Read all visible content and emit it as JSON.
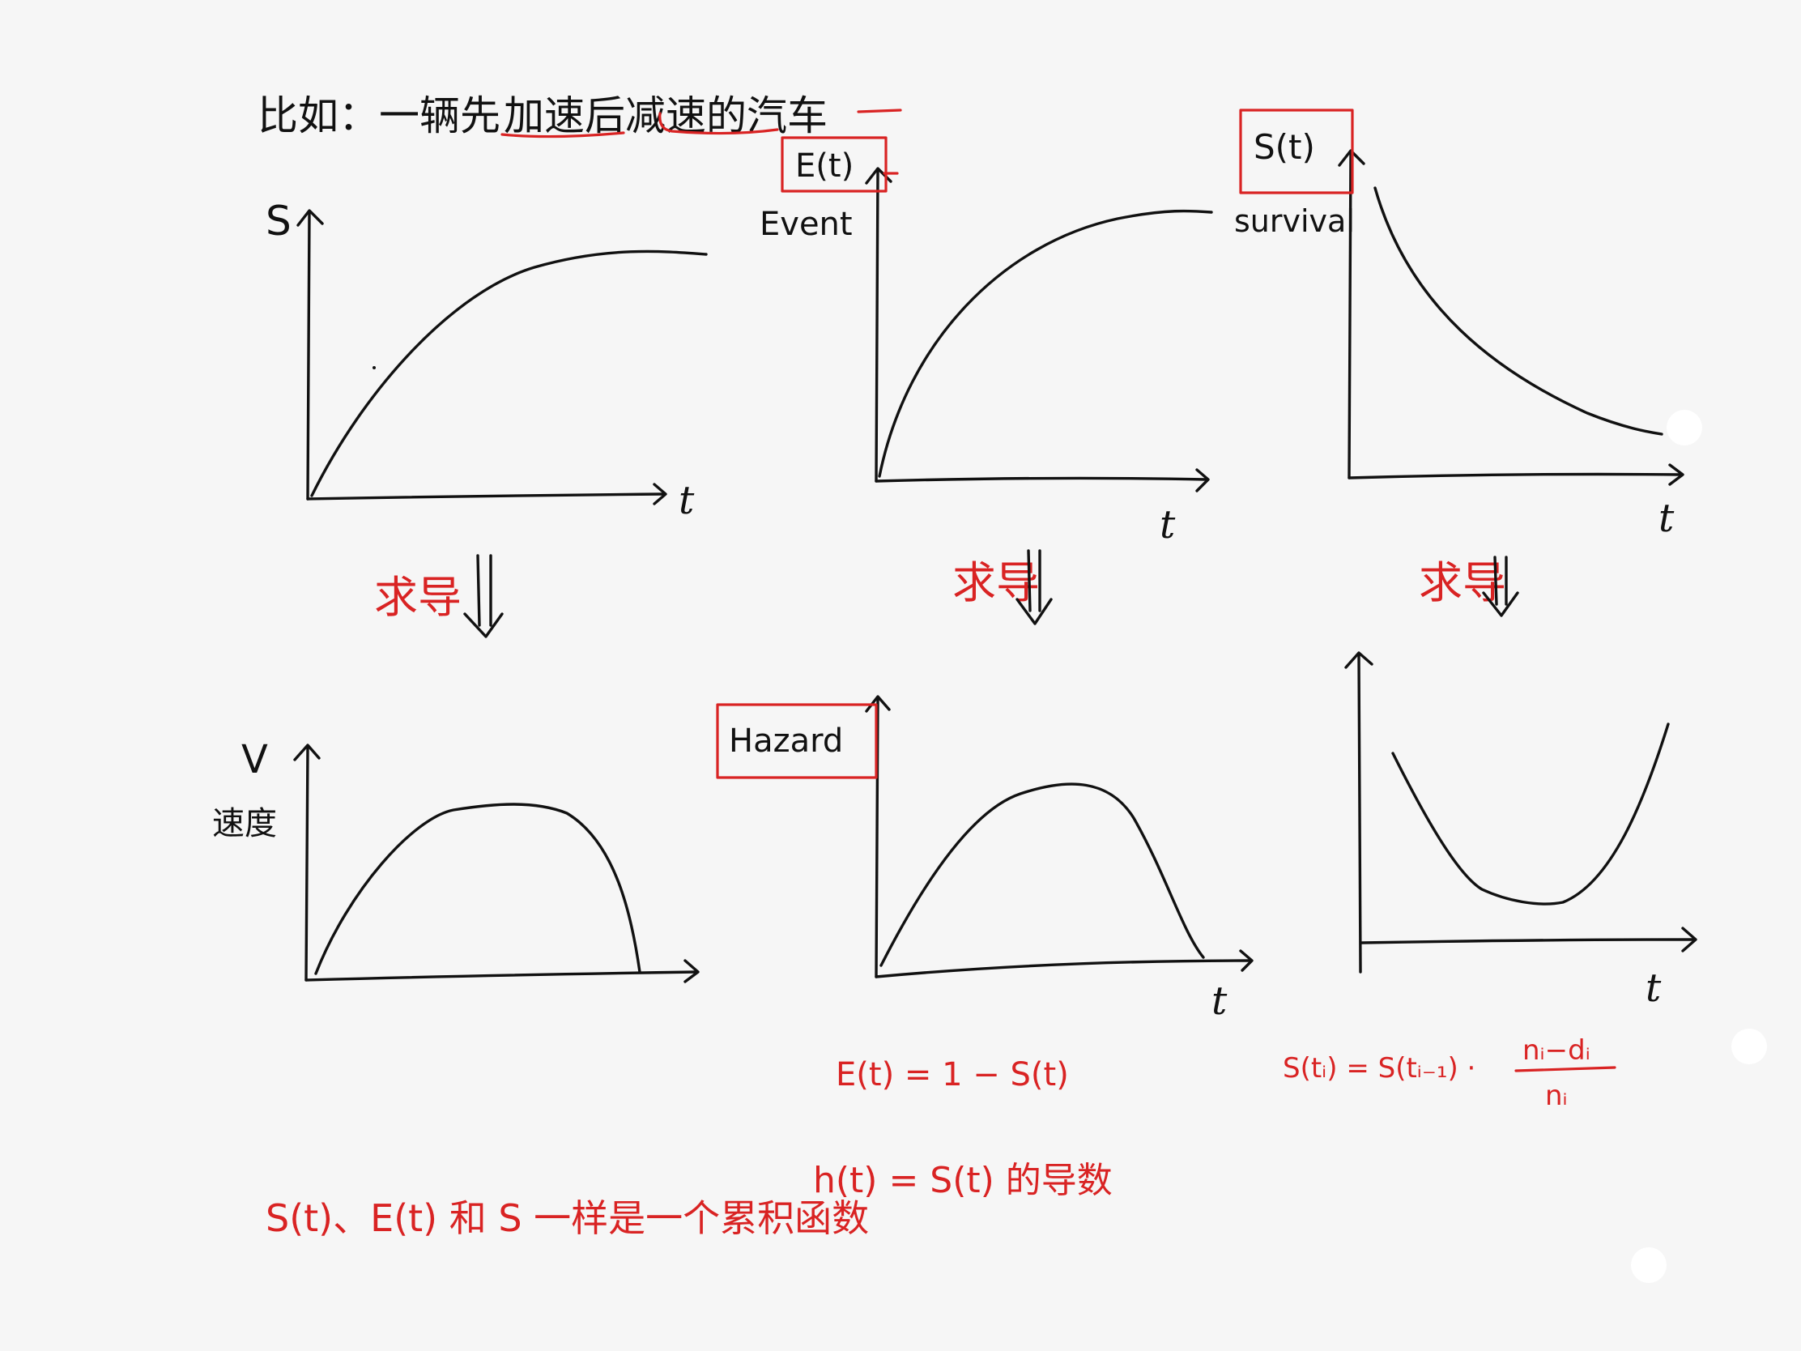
{
  "title": {
    "prefix": "比如：一辆先",
    "accel": "加速",
    "mid": "后",
    "decel": "减速",
    "suffix": "的汽车"
  },
  "panels": {
    "top_left": {
      "ylabel": "S",
      "xlabel": "t"
    },
    "top_mid": {
      "box_label": "E(t)",
      "side_label": "Event",
      "xlabel": "t"
    },
    "top_right": {
      "box_label": "S(t)",
      "side_label": "survival",
      "xlabel": "t"
    },
    "bottom_left": {
      "ylabel": "V",
      "ylabel_cn": "速度"
    },
    "bottom_mid": {
      "box_label": "Hazard",
      "xlabel": "t"
    },
    "bottom_right": {
      "xlabel": "t"
    }
  },
  "derivative_labels": [
    "求导",
    "求导",
    "求导"
  ],
  "formulas": {
    "f1": "E(t) = 1 − S(t)",
    "f2_left": "S(tᵢ) = S(tᵢ₋₁) ·",
    "f2_num": "nᵢ−dᵢ",
    "f2_den": "nᵢ",
    "f3": "h(t) = S(t) 的导数",
    "f4": "S(t)、E(t) 和 S 一样是一个累积函数"
  },
  "colors": {
    "ink": "#111111",
    "red": "#d92323",
    "paper": "#f6f6f6"
  }
}
